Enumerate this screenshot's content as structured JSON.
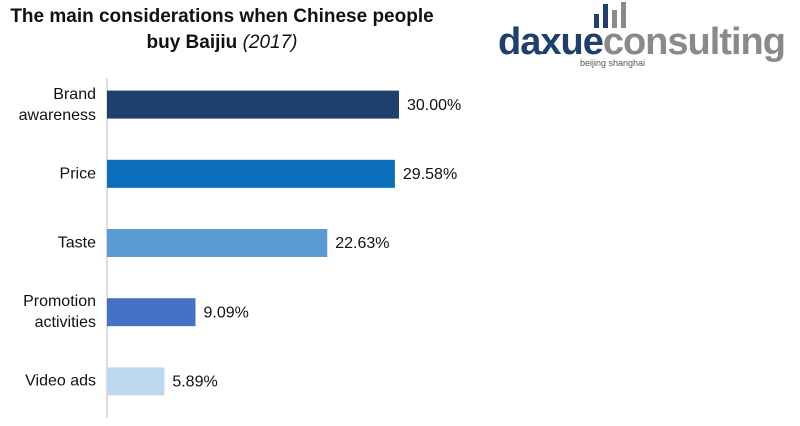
{
  "chart_data": {
    "type": "bar",
    "orientation": "horizontal",
    "title": "The main considerations when Chinese people buy Baijiu",
    "subtitle": "(2017)",
    "logo": {
      "name_part1": "daxue",
      "name_part2": "consulting",
      "tagline": "beijing shanghai"
    },
    "categories": [
      "Brand awareness",
      "Price",
      "Taste",
      "Promotion activities",
      "Video ads"
    ],
    "values": [
      30,
      29.58,
      22.63,
      9.09,
      5.89
    ],
    "value_labels": [
      "30.00%",
      "29.58%",
      "22.63%",
      "9.09%",
      "5.89%"
    ],
    "colors": [
      "#1f3f6e",
      "#0a6ebd",
      "#5b9bd5",
      "#4472c4",
      "#bdd7ee"
    ],
    "xlim": [
      0,
      30
    ],
    "grid": false
  }
}
